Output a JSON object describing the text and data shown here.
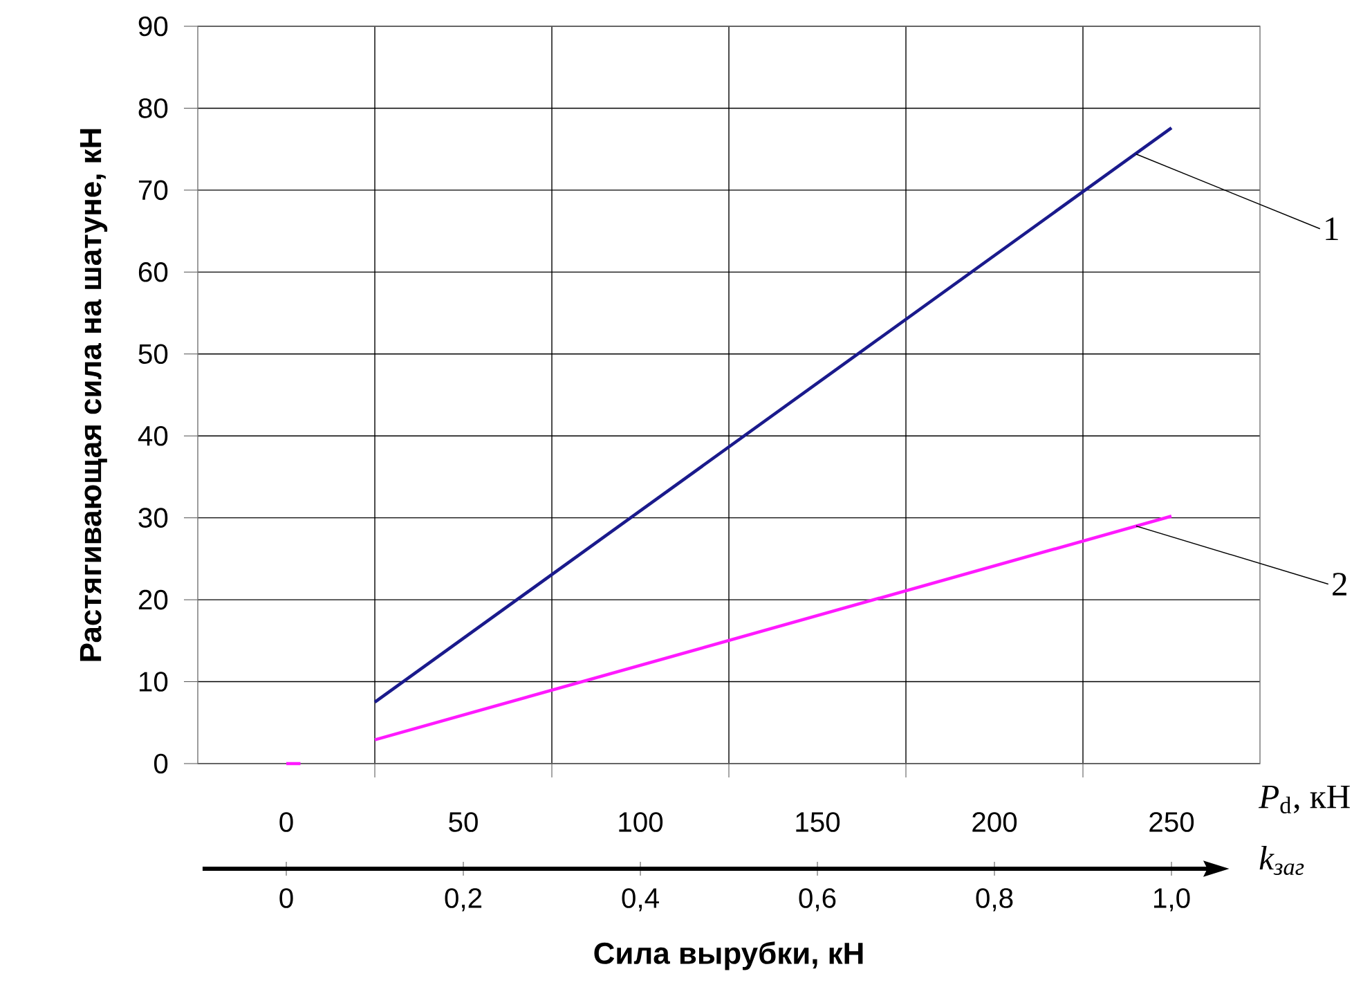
{
  "chart_data": {
    "type": "line",
    "ylabel": "Растягивающая сила на шатуне, кН",
    "xlabel": "Сила вырубки, кН",
    "x2label": "*k*$_{заг}$",
    "x": [
      25,
      250
    ],
    "xlim": [
      -25,
      275
    ],
    "xticks": [
      0,
      {
        "value": 25,
        "label": null
      },
      50,
      {
        "value": 75,
        "label": null
      },
      100,
      {
        "value": 125,
        "label": null
      },
      150,
      {
        "value": 175,
        "label": null
      },
      200,
      {
        "value": 225,
        "label": null
      },
      250
    ],
    "x2lim": [
      -0.1,
      1.1
    ],
    "x2ticks": [
      0,
      {
        "value": 0.2,
        "label": "0,2"
      },
      {
        "value": 0.4,
        "label": "0,4"
      },
      {
        "value": 0.6,
        "label": "0,6"
      },
      {
        "value": 0.8,
        "label": "0,8"
      },
      {
        "value": 1.0,
        "label": "1,0"
      }
    ],
    "ylim": [
      0,
      90
    ],
    "yticks": [
      0,
      10,
      20,
      30,
      40,
      50,
      60,
      70,
      80,
      90
    ],
    "grid": true,
    "line_style": "solid",
    "marker": "none",
    "series": [
      {
        "color": "#1a1a8c",
        "values": [
          7.5,
          77.6
        ]
      },
      {
        "color": "#ff1aff",
        "x": [
          0,
          4,
          15,
          25,
          250
        ],
        "values": [
          0,
          0,
          null,
          2.9,
          30.2
        ]
      }
    ],
    "annotations": [
      {
        "text": "1",
        "x": 240,
        "y": 74.4
      },
      {
        "text": "2",
        "x": 240,
        "y": 29
      },
      "*P*$_{d}$, кН"
    ]
  }
}
